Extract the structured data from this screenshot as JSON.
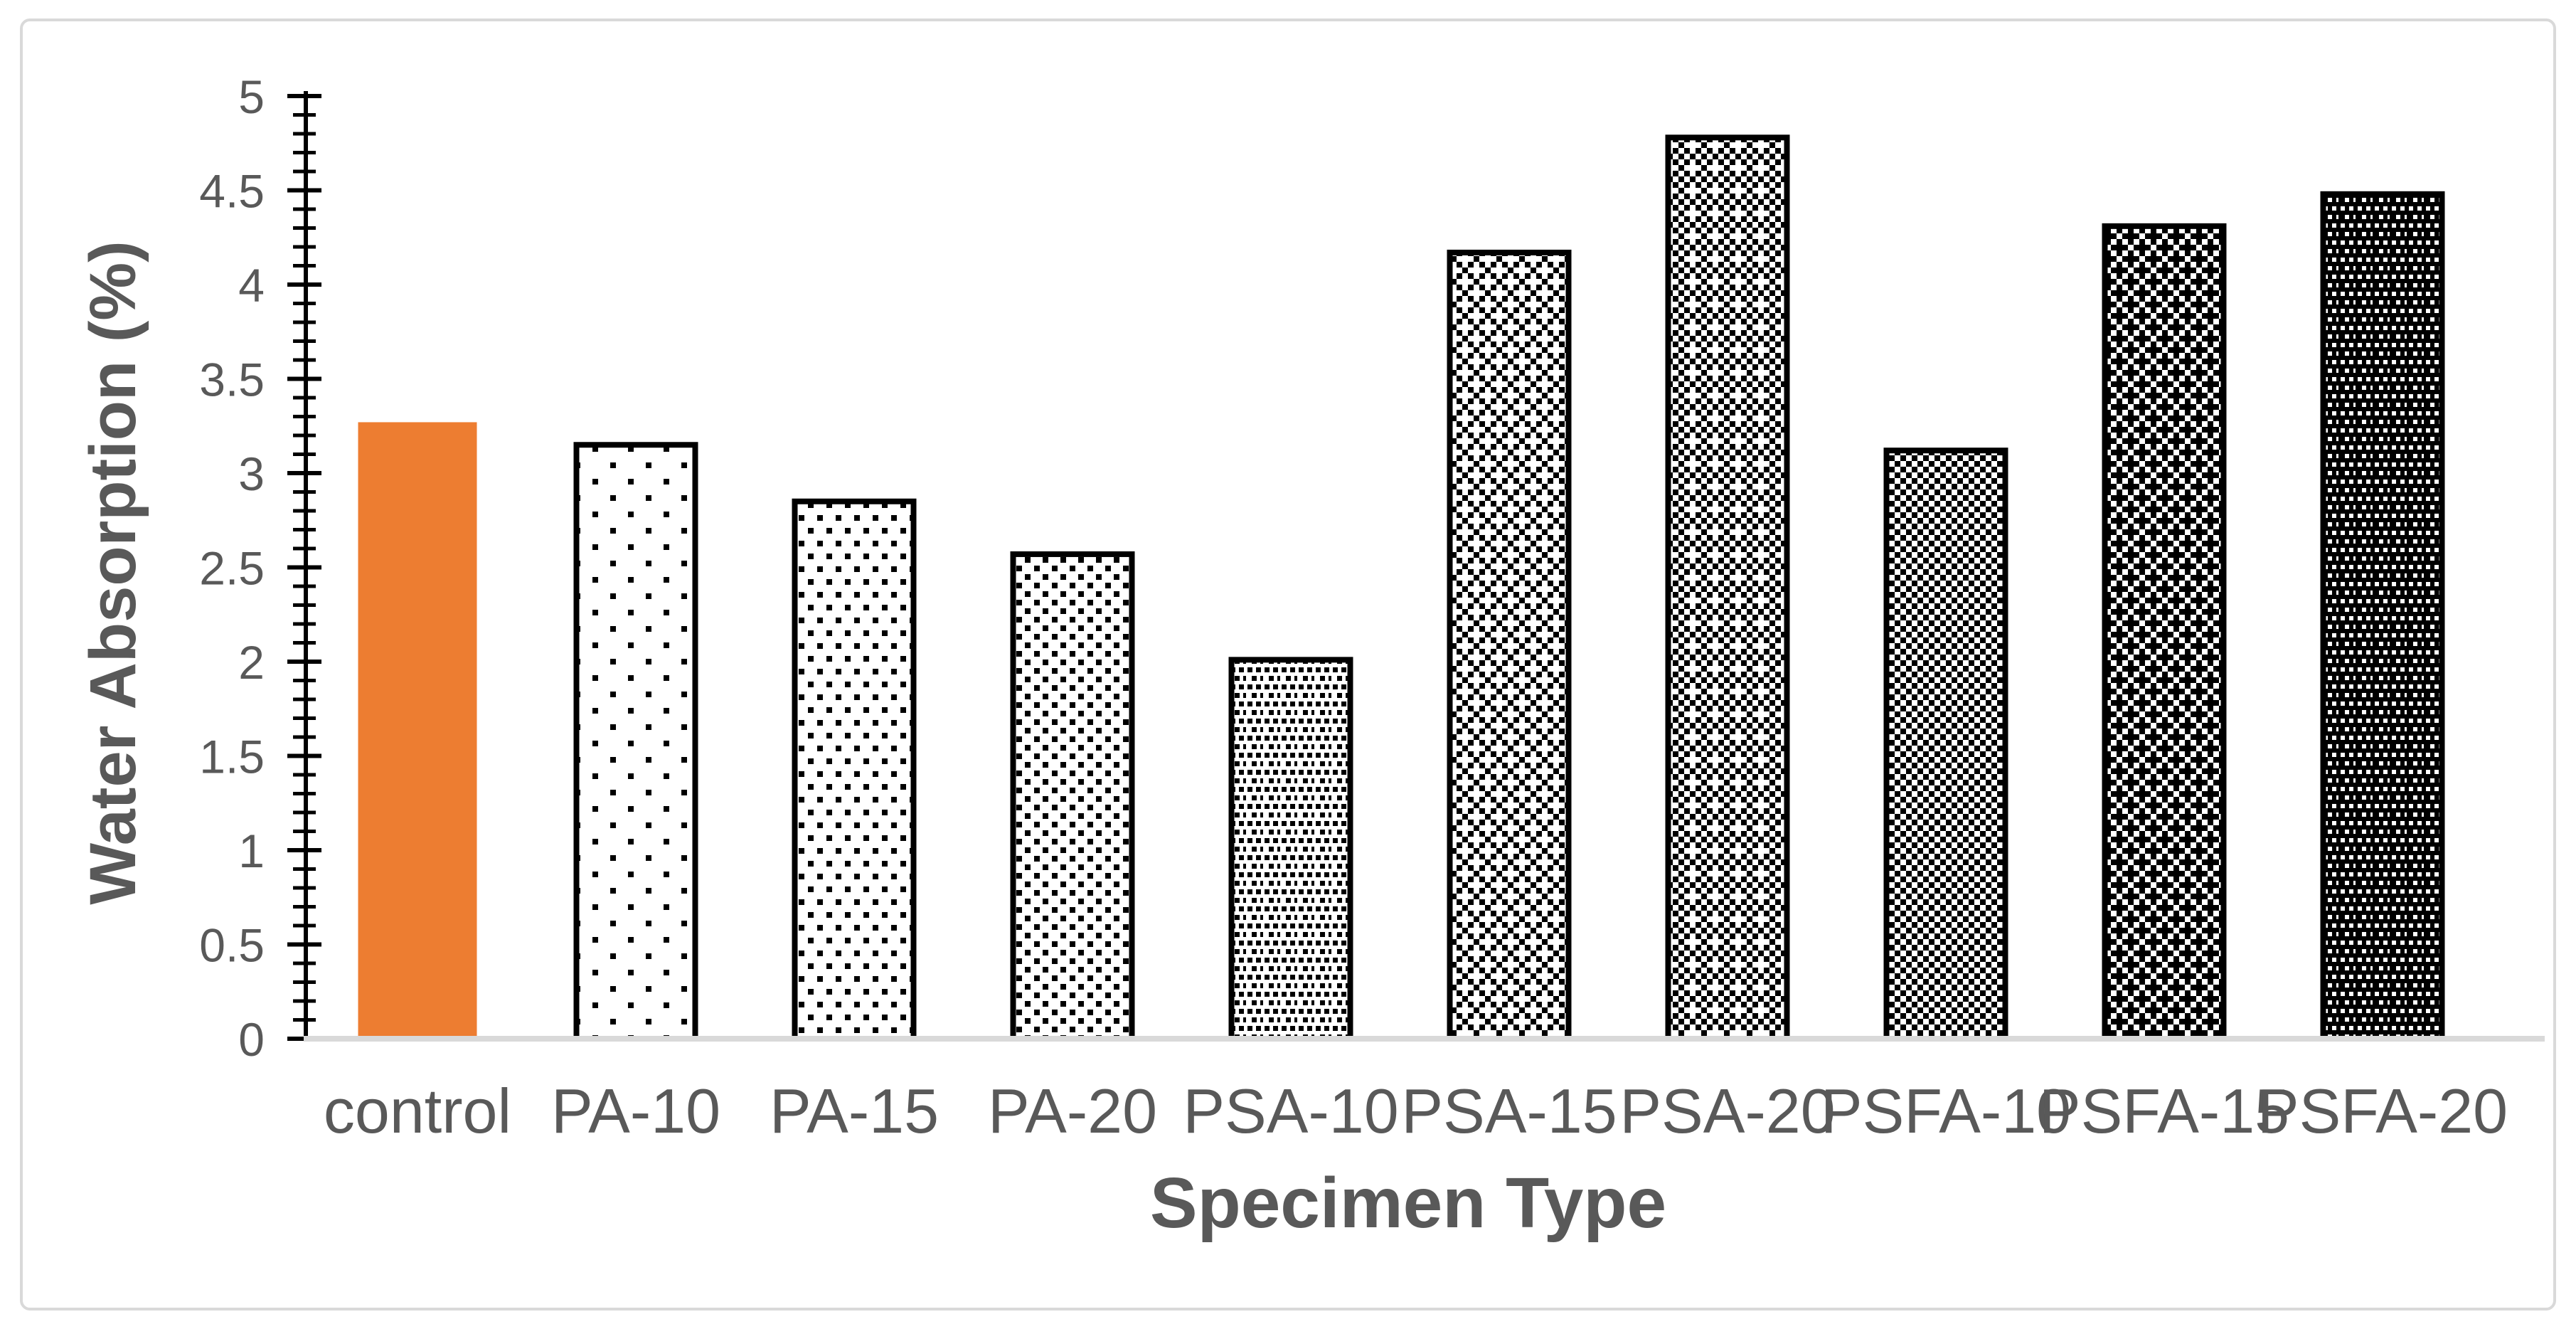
{
  "page": {
    "background_color": "#FFFFFF",
    "frame_color": "#D9D9D9"
  },
  "chart_data": {
    "type": "bar",
    "title": "",
    "categories": [
      "control",
      "PA-10",
      "PA-15",
      "PA-20",
      "PSA-10",
      "PSA-15",
      "PSA-20",
      "PSFA-10",
      "PSFA-15",
      "PSFA-20"
    ],
    "values": [
      3.27,
      3.15,
      2.85,
      2.57,
      2.01,
      4.17,
      4.78,
      3.12,
      4.31,
      4.48
    ],
    "xlabel": "Specimen Type",
    "ylabel": "Water Absorption (%)",
    "ylim": [
      0,
      5
    ],
    "y_major_tick": 0.5,
    "y_minor_tick": 0.1,
    "y_tick_labels": [
      "0",
      "0.5",
      "1",
      "1.5",
      "2",
      "2.5",
      "3",
      "3.5",
      "4",
      "4.5",
      "5"
    ],
    "grid": false,
    "legend": false,
    "bar_styles": [
      {
        "category": "control",
        "fill": "solid",
        "color": "#ED7D31",
        "pattern": null,
        "outlined": false
      },
      {
        "category": "PA-10",
        "fill": "pattern",
        "color": "#000000",
        "pattern": "dots-5",
        "outlined": true
      },
      {
        "category": "PA-15",
        "fill": "pattern",
        "color": "#000000",
        "pattern": "dots-10",
        "outlined": true
      },
      {
        "category": "PA-20",
        "fill": "pattern",
        "color": "#000000",
        "pattern": "dots-20",
        "outlined": true
      },
      {
        "category": "PSA-10",
        "fill": "pattern",
        "color": "#000000",
        "pattern": "dots-25",
        "outlined": true
      },
      {
        "category": "PSA-15",
        "fill": "pattern",
        "color": "#000000",
        "pattern": "checker-30",
        "outlined": true
      },
      {
        "category": "PSA-20",
        "fill": "pattern",
        "color": "#000000",
        "pattern": "checker-40",
        "outlined": true
      },
      {
        "category": "PSFA-10",
        "fill": "pattern",
        "color": "#000000",
        "pattern": "checker-50",
        "outlined": true
      },
      {
        "category": "PSFA-15",
        "fill": "pattern",
        "color": "#000000",
        "pattern": "checker-60",
        "outlined": true
      },
      {
        "category": "PSFA-20",
        "fill": "pattern",
        "color": "#000000",
        "pattern": "checker-70",
        "outlined": true
      }
    ],
    "colors": {
      "control_bar": "#ED7D31",
      "bar_outline": "#000000",
      "y_axis_line": "#000000",
      "x_axis_line": "#D9D9D9",
      "tick_label": "#595959",
      "category_label": "#595959",
      "axis_title": "#595959"
    }
  }
}
